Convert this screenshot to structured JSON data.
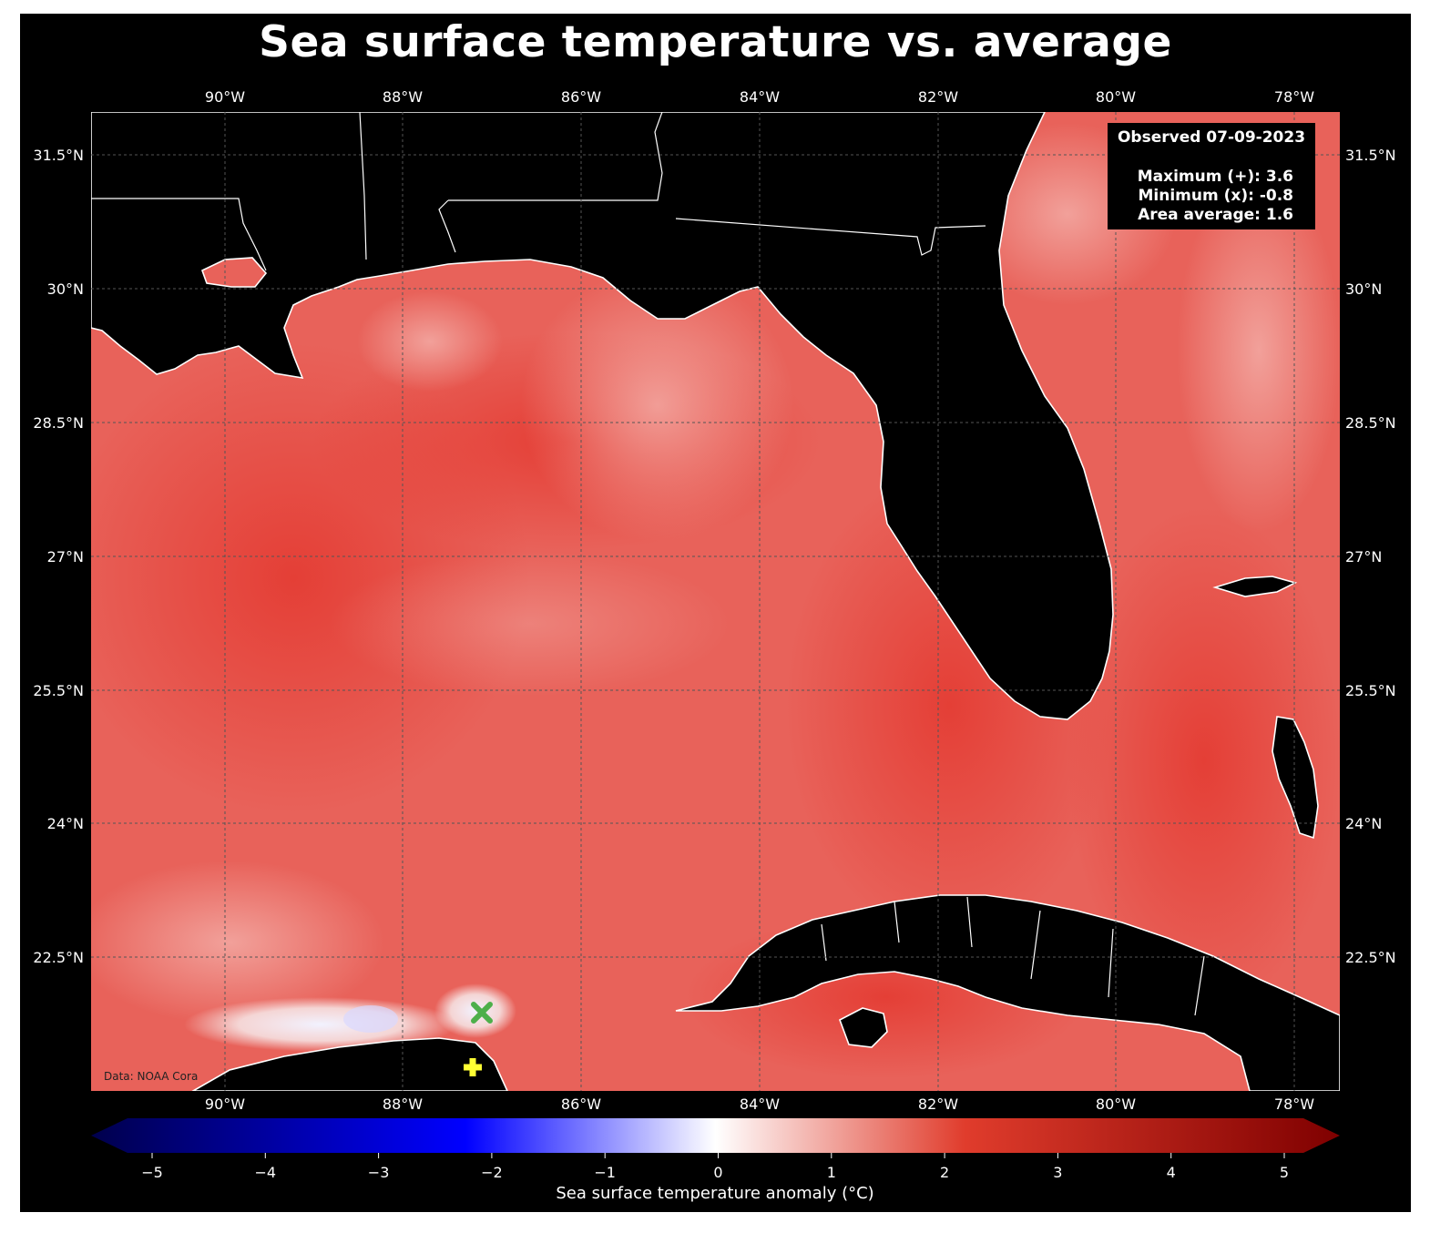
{
  "title": "Sea surface temperature vs. average",
  "info_box": {
    "observed": "Observed 07-09-2023",
    "maximum": "Maximum (+): 3.6",
    "minimum": "Minimum (x): -0.8",
    "area_average": "Area average: 1.6"
  },
  "credit": "Data: NOAA Cora",
  "longitude_labels": [
    "90°W",
    "88°W",
    "86°W",
    "84°W",
    "82°W",
    "80°W",
    "78°W"
  ],
  "latitude_labels": [
    "31.5°N",
    "30°N",
    "28.5°N",
    "27°N",
    "25.5°N",
    "24°N",
    "22.5°N"
  ],
  "colorbar": {
    "label": "Sea surface temperature anomaly (°C)",
    "ticks": [
      "−5",
      "−4",
      "−3",
      "−2",
      "−1",
      "0",
      "1",
      "2",
      "3",
      "4",
      "5"
    ],
    "range": [
      -5,
      5
    ],
    "colors": [
      "#00004c",
      "#0000ff",
      "#ffffff",
      "#e03c2c",
      "#7f0000"
    ]
  },
  "markers": {
    "maximum_symbol": "+",
    "maximum_color": "#ffff33",
    "minimum_symbol": "x",
    "minimum_color": "#4daf4a"
  },
  "colors": {
    "background": "#000000",
    "ocean": "#e8625a",
    "land": "#000000",
    "coastline": "#ffffff",
    "gridline": "#555555"
  }
}
